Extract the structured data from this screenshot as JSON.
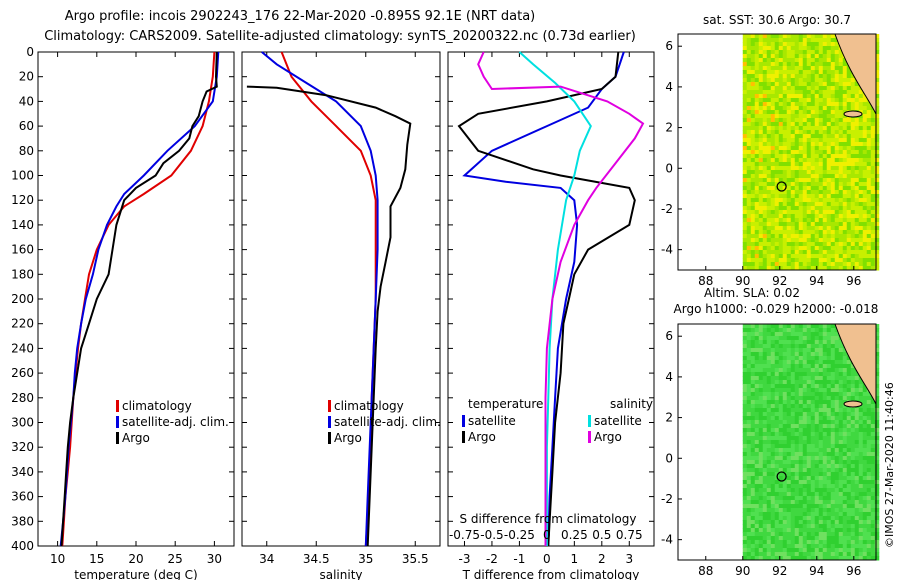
{
  "header": {
    "line1": "Argo profile: incois 2902243_176 22-Mar-2020 -0.895S 92.1E (NRT data)",
    "line2": "Climatology: CARS2009. Satellite-adjusted climatology: synTS_20200322.nc (0.73d earlier)"
  },
  "depth_axis": {
    "ticks": [
      0,
      20,
      40,
      60,
      80,
      100,
      120,
      140,
      160,
      180,
      200,
      220,
      240,
      260,
      280,
      300,
      320,
      340,
      360,
      380,
      400
    ],
    "range": [
      0,
      400
    ]
  },
  "colors": {
    "climatology": "#e00000",
    "satellite": "#0000e0",
    "argo": "#000000",
    "cyan": "#00e0e0",
    "magenta": "#e000e0"
  },
  "chart_data": [
    {
      "type": "line",
      "id": "temperature",
      "xlabel": "temperature (deg C)",
      "xlim": [
        7.5,
        32.5
      ],
      "xticks": [
        10,
        15,
        20,
        25,
        30
      ],
      "tick_labels": [
        "10",
        "15",
        "20",
        "25",
        "30"
      ],
      "legend": [
        {
          "label": "climatology",
          "color": "#e00000"
        },
        {
          "label": "satellite-adj. clim.",
          "color": "#0000e0"
        },
        {
          "label": "Argo",
          "color": "#000000"
        }
      ],
      "series": [
        {
          "name": "climatology",
          "color": "#e00000",
          "points": [
            [
              30.0,
              0
            ],
            [
              29.8,
              20
            ],
            [
              29.3,
              40
            ],
            [
              28.5,
              60
            ],
            [
              27.0,
              80
            ],
            [
              24.5,
              100
            ],
            [
              21.0,
              115
            ],
            [
              18.5,
              125
            ],
            [
              16.5,
              140
            ],
            [
              15.0,
              160
            ],
            [
              14.0,
              180
            ],
            [
              13.5,
              200
            ],
            [
              13.0,
              220
            ],
            [
              12.6,
              240
            ],
            [
              12.3,
              260
            ],
            [
              12.0,
              280
            ],
            [
              11.8,
              300
            ],
            [
              11.6,
              320
            ],
            [
              11.3,
              340
            ],
            [
              11.0,
              360
            ],
            [
              10.8,
              380
            ],
            [
              10.6,
              400
            ]
          ]
        },
        {
          "name": "satellite-adj. clim.",
          "color": "#0000e0",
          "points": [
            [
              30.5,
              0
            ],
            [
              30.3,
              20
            ],
            [
              29.8,
              40
            ],
            [
              27.5,
              60
            ],
            [
              24.0,
              80
            ],
            [
              21.0,
              100
            ],
            [
              18.5,
              115
            ],
            [
              17.5,
              125
            ],
            [
              16.3,
              140
            ],
            [
              15.2,
              160
            ],
            [
              14.5,
              180
            ],
            [
              13.6,
              200
            ],
            [
              13.0,
              220
            ],
            [
              12.5,
              240
            ],
            [
              12.2,
              260
            ],
            [
              12.0,
              280
            ],
            [
              11.7,
              300
            ],
            [
              11.4,
              320
            ],
            [
              11.2,
              340
            ],
            [
              11.0,
              360
            ],
            [
              10.7,
              380
            ],
            [
              10.4,
              400
            ]
          ]
        },
        {
          "name": "Argo",
          "color": "#000000",
          "points": [
            [
              30.3,
              0
            ],
            [
              30.2,
              20
            ],
            [
              30.3,
              28
            ],
            [
              29.0,
              32
            ],
            [
              28.5,
              40
            ],
            [
              28.0,
              52
            ],
            [
              27.2,
              60
            ],
            [
              26.8,
              70
            ],
            [
              25.5,
              80
            ],
            [
              23.5,
              90
            ],
            [
              22.5,
              100
            ],
            [
              20.0,
              110
            ],
            [
              18.5,
              120
            ],
            [
              18.0,
              130
            ],
            [
              17.5,
              140
            ],
            [
              17.0,
              160
            ],
            [
              16.5,
              180
            ],
            [
              15.0,
              200
            ],
            [
              14.0,
              220
            ],
            [
              13.0,
              240
            ],
            [
              12.5,
              260
            ],
            [
              12.0,
              280
            ],
            [
              11.6,
              300
            ],
            [
              11.3,
              320
            ],
            [
              11.1,
              340
            ],
            [
              10.9,
              360
            ],
            [
              10.7,
              380
            ],
            [
              10.5,
              400
            ]
          ]
        }
      ]
    },
    {
      "type": "line",
      "id": "salinity",
      "xlabel": "salinity",
      "xlim": [
        33.75,
        35.75
      ],
      "xticks": [
        34,
        34.5,
        35,
        35.5
      ],
      "tick_labels": [
        "34",
        "34.5",
        "35",
        "35.5"
      ],
      "legend": [
        {
          "label": "climatology",
          "color": "#e00000"
        },
        {
          "label": "satellite-adj. clim.",
          "color": "#0000e0"
        },
        {
          "label": "Argo",
          "color": "#000000"
        }
      ],
      "series": [
        {
          "name": "climatology",
          "color": "#e00000",
          "points": [
            [
              34.15,
              0
            ],
            [
              34.25,
              20
            ],
            [
              34.45,
              40
            ],
            [
              34.7,
              60
            ],
            [
              34.95,
              80
            ],
            [
              35.05,
              100
            ],
            [
              35.1,
              120
            ],
            [
              35.1,
              160
            ],
            [
              35.1,
              200
            ],
            [
              35.08,
              240
            ],
            [
              35.06,
              280
            ],
            [
              35.05,
              320
            ],
            [
              35.03,
              360
            ],
            [
              35.0,
              400
            ]
          ]
        },
        {
          "name": "satellite-adj. clim.",
          "color": "#0000e0",
          "points": [
            [
              33.95,
              0
            ],
            [
              34.1,
              10
            ],
            [
              34.4,
              25
            ],
            [
              34.7,
              40
            ],
            [
              34.95,
              60
            ],
            [
              35.05,
              80
            ],
            [
              35.1,
              100
            ],
            [
              35.12,
              120
            ],
            [
              35.12,
              160
            ],
            [
              35.1,
              200
            ],
            [
              35.08,
              240
            ],
            [
              35.06,
              280
            ],
            [
              35.04,
              320
            ],
            [
              35.02,
              360
            ],
            [
              35.0,
              400
            ]
          ]
        },
        {
          "name": "Argo",
          "color": "#000000",
          "points": [
            [
              33.8,
              28
            ],
            [
              34.1,
              29
            ],
            [
              34.6,
              35
            ],
            [
              35.1,
              45
            ],
            [
              35.3,
              52
            ],
            [
              35.45,
              58
            ],
            [
              35.42,
              75
            ],
            [
              35.4,
              95
            ],
            [
              35.35,
              110
            ],
            [
              35.25,
              125
            ],
            [
              35.25,
              150
            ],
            [
              35.2,
              170
            ],
            [
              35.15,
              190
            ],
            [
              35.12,
              210
            ],
            [
              35.1,
              240
            ],
            [
              35.08,
              280
            ],
            [
              35.06,
              320
            ],
            [
              35.04,
              360
            ],
            [
              35.02,
              400
            ]
          ]
        }
      ]
    },
    {
      "type": "line",
      "id": "difference",
      "xlabel": "T difference from climatology",
      "top_label": "S difference from climatology",
      "xlim": [
        -3.6,
        3.9
      ],
      "xticks": [
        -3,
        -2,
        -1,
        0,
        1,
        2,
        3
      ],
      "tick_labels": [
        "-3",
        "-2",
        "-1",
        "0",
        "1",
        "2",
        "3"
      ],
      "s_ticks": [
        -0.75,
        -0.5,
        -0.25,
        0,
        0.25,
        0.5,
        0.75
      ],
      "s_tick_labels": [
        "-0.75",
        "-0.5",
        "-0.25",
        "0",
        "0.25",
        "0.5",
        "0.75"
      ],
      "legend_temperature": {
        "title": "temperature",
        "items": [
          {
            "label": "satellite",
            "color": "#0000e0"
          },
          {
            "label": "Argo",
            "color": "#000000"
          }
        ]
      },
      "legend_salinity": {
        "title": "salinity",
        "items": [
          {
            "label": "satellite",
            "color": "#00e0e0"
          },
          {
            "label": "Argo",
            "color": "#e000e0"
          }
        ]
      },
      "series": [
        {
          "name": "T satellite",
          "color": "#0000e0",
          "points": [
            [
              2.8,
              0
            ],
            [
              2.5,
              20
            ],
            [
              2.0,
              30
            ],
            [
              1.5,
              45
            ],
            [
              0.0,
              60
            ],
            [
              -2.0,
              80
            ],
            [
              -3.0,
              100
            ],
            [
              -1.5,
              105
            ],
            [
              0.5,
              110
            ],
            [
              1.0,
              120
            ],
            [
              1.1,
              140
            ],
            [
              1.0,
              170
            ],
            [
              0.7,
              200
            ],
            [
              0.4,
              240
            ],
            [
              0.3,
              280
            ],
            [
              0.2,
              320
            ],
            [
              0.1,
              360
            ],
            [
              0.05,
              400
            ]
          ]
        },
        {
          "name": "T Argo",
          "color": "#000000",
          "points": [
            [
              2.6,
              0
            ],
            [
              2.5,
              20
            ],
            [
              2.0,
              30
            ],
            [
              0.0,
              40
            ],
            [
              -2.5,
              50
            ],
            [
              -3.2,
              60
            ],
            [
              -2.5,
              80
            ],
            [
              -0.5,
              95
            ],
            [
              0.5,
              100
            ],
            [
              3.0,
              110
            ],
            [
              3.2,
              120
            ],
            [
              3.0,
              140
            ],
            [
              1.5,
              160
            ],
            [
              1.0,
              180
            ],
            [
              0.8,
              200
            ],
            [
              0.6,
              220
            ],
            [
              0.5,
              260
            ],
            [
              0.3,
              300
            ],
            [
              0.2,
              340
            ],
            [
              0.1,
              380
            ],
            [
              0.05,
              400
            ]
          ]
        },
        {
          "name": "S satellite",
          "color": "#00e0e0",
          "points": [
            [
              -1.0,
              0
            ],
            [
              -0.5,
              10
            ],
            [
              0.3,
              25
            ],
            [
              1.0,
              40
            ],
            [
              1.6,
              60
            ],
            [
              1.2,
              80
            ],
            [
              1.0,
              100
            ],
            [
              0.7,
              120
            ],
            [
              0.4,
              160
            ],
            [
              0.2,
              200
            ],
            [
              0.1,
              240
            ],
            [
              0.05,
              280
            ],
            [
              0.0,
              320
            ],
            [
              0.0,
              360
            ],
            [
              0.0,
              400
            ]
          ]
        },
        {
          "name": "S Argo",
          "color": "#e000e0",
          "points": [
            [
              -2.3,
              0
            ],
            [
              -2.5,
              10
            ],
            [
              -2.3,
              20
            ],
            [
              -2.0,
              30
            ],
            [
              0.5,
              28
            ],
            [
              2.2,
              40
            ],
            [
              3.0,
              50
            ],
            [
              3.5,
              58
            ],
            [
              3.2,
              70
            ],
            [
              2.5,
              90
            ],
            [
              1.8,
              110
            ],
            [
              1.5,
              120
            ],
            [
              1.0,
              140
            ],
            [
              0.5,
              170
            ],
            [
              0.2,
              200
            ],
            [
              0.0,
              240
            ],
            [
              -0.05,
              280
            ],
            [
              -0.05,
              320
            ],
            [
              -0.05,
              360
            ],
            [
              -0.05,
              400
            ]
          ]
        }
      ]
    },
    {
      "type": "heatmap",
      "id": "sst_map",
      "title": "sat. SST: 30.6 Argo: 30.7",
      "xlim": [
        86.5,
        97.2
      ],
      "ylim": [
        -5,
        6.6
      ],
      "xticks": [
        88,
        90,
        92,
        94,
        96
      ],
      "yticks": [
        -4,
        -2,
        0,
        2,
        4,
        6
      ],
      "tick_labels_x": [
        "88",
        "90",
        "92",
        "94",
        "96"
      ],
      "tick_labels_y": [
        "-4",
        "-2",
        "0",
        "2",
        "4",
        "6"
      ],
      "profile_location": [
        92.1,
        -0.895
      ],
      "data_from_lon": 90
    },
    {
      "type": "heatmap",
      "id": "sla_map",
      "title_line1": "Altim. SLA: 0.02",
      "title_line2": "Argo h1000: -0.029 h2000: -0.018",
      "xlim": [
        86.5,
        97.2
      ],
      "ylim": [
        -5,
        6.6
      ],
      "xticks": [
        88,
        90,
        92,
        94,
        96
      ],
      "yticks": [
        -4,
        -2,
        0,
        2,
        4,
        6
      ],
      "tick_labels_x": [
        "88",
        "90",
        "92",
        "94",
        "96"
      ],
      "tick_labels_y": [
        "-4",
        "-2",
        "0",
        "2",
        "4",
        "6"
      ],
      "profile_location": [
        92.1,
        -0.895
      ],
      "data_from_lon": 90
    }
  ],
  "footer": {
    "credit": "©IMOS 27-Mar-2020 11:40:46"
  }
}
